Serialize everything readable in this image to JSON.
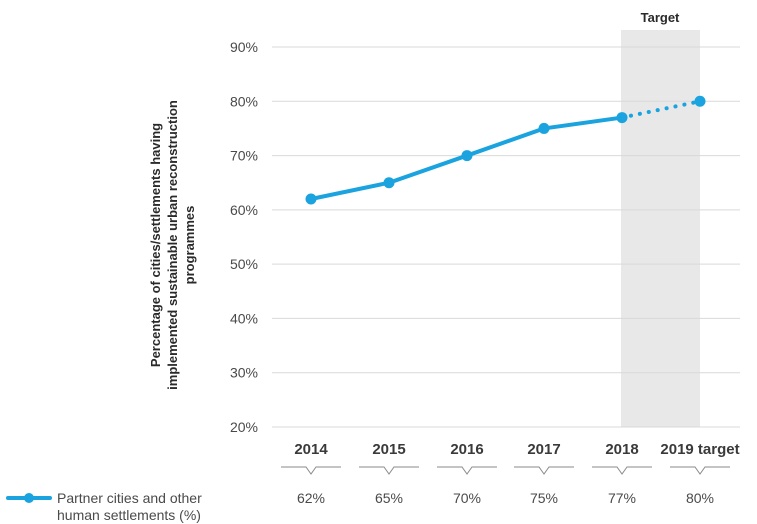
{
  "chart_data": {
    "type": "line",
    "categories": [
      "2014",
      "2015",
      "2016",
      "2017",
      "2018",
      "2019 target"
    ],
    "series": [
      {
        "name": "Partner cities and other human settlements (%)",
        "values": [
          62,
          65,
          70,
          75,
          77,
          80
        ],
        "value_labels": [
          "62%",
          "65%",
          "70%",
          "75%",
          "77%",
          "80%"
        ],
        "projected_from_index": 4
      }
    ],
    "ylabel": "Percentage of cities/settlements having implemented sustainable urban reconstruction programmes",
    "ylabel_lines": [
      "Percentage of cities/settlements having",
      "implemented sustainable urban reconstruction",
      "programmes"
    ],
    "ylim": [
      20,
      90
    ],
    "yticks": [
      "20%",
      "30%",
      "40%",
      "50%",
      "60%",
      "70%",
      "80%",
      "90%"
    ],
    "target_label": "Target",
    "target_category": "2019 target",
    "legend": {
      "label_lines": [
        "Partner cities and other",
        "human settlements (%)"
      ],
      "placement": "bottom-left"
    },
    "grid": true,
    "colors": {
      "line": "#1aa3df",
      "target_band": "#e8e8e8",
      "grid": "#d9d9d9",
      "text": "#4a4a4a"
    }
  }
}
